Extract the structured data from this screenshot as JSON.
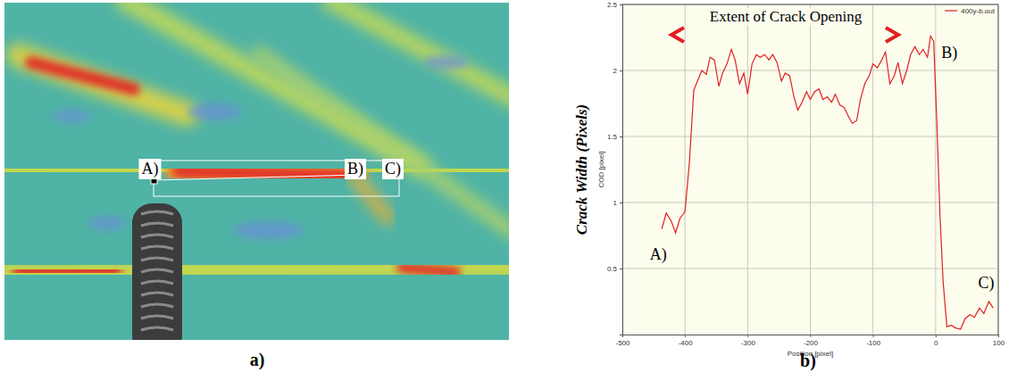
{
  "image_panel": {
    "panel_label": "a)",
    "markers": [
      "A)",
      "B)",
      "C)"
    ]
  },
  "chart_data": {
    "type": "line",
    "panel_label": "b)",
    "y_label": "Crack Width (Pixels)",
    "y_label_inner": "COD [pixel]",
    "x_label": "Position [pixel]",
    "annotation": "Extent of Crack Opening",
    "point_labels": [
      "A)",
      "B)",
      "C)"
    ],
    "x": [
      -437,
      -430,
      -422,
      -415,
      -408,
      -400,
      -393,
      -386,
      -380,
      -373,
      -366,
      -360,
      -353,
      -346,
      -340,
      -333,
      -326,
      -320,
      -313,
      -306,
      -300,
      -293,
      -286,
      -280,
      -273,
      -266,
      -260,
      -253,
      -246,
      -240,
      -233,
      -226,
      -220,
      -213,
      -206,
      -200,
      -193,
      -186,
      -180,
      -173,
      -166,
      -160,
      -153,
      -146,
      -140,
      -133,
      -126,
      -120,
      -113,
      -106,
      -100,
      -93,
      -86,
      -80,
      -73,
      -66,
      -60,
      -53,
      -46,
      -40,
      -33,
      -26,
      -20,
      -13,
      -8,
      -3,
      2,
      7,
      12,
      18,
      25,
      32,
      40,
      47,
      55,
      62,
      70,
      77,
      85,
      92
    ],
    "series": [
      {
        "name": "400y-b.out",
        "color": "#e02020",
        "values": [
          0.8,
          0.92,
          0.86,
          0.77,
          0.88,
          0.93,
          1.3,
          1.85,
          1.92,
          2.0,
          1.97,
          2.1,
          2.08,
          1.88,
          1.98,
          2.05,
          2.16,
          2.08,
          1.9,
          1.98,
          1.82,
          2.05,
          2.12,
          2.1,
          2.12,
          2.08,
          2.12,
          2.06,
          1.92,
          1.98,
          1.96,
          1.8,
          1.7,
          1.76,
          1.84,
          1.78,
          1.84,
          1.86,
          1.78,
          1.8,
          1.76,
          1.82,
          1.74,
          1.72,
          1.66,
          1.6,
          1.62,
          1.78,
          1.9,
          1.96,
          2.05,
          2.02,
          2.08,
          2.14,
          1.9,
          1.96,
          2.06,
          1.9,
          2.0,
          2.12,
          2.18,
          2.12,
          2.16,
          2.1,
          2.26,
          2.22,
          1.6,
          0.9,
          0.4,
          0.06,
          0.07,
          0.05,
          0.04,
          0.12,
          0.15,
          0.13,
          0.2,
          0.16,
          0.25,
          0.2
        ]
      }
    ],
    "xlim": [
      -500,
      100
    ],
    "xticks": [
      -500,
      -400,
      -300,
      -200,
      -100,
      0,
      100
    ],
    "ylim": [
      0,
      2.5
    ],
    "yticks": [
      0.5,
      1,
      1.5,
      2,
      2.5
    ],
    "grid": true,
    "legend": "upper right"
  }
}
